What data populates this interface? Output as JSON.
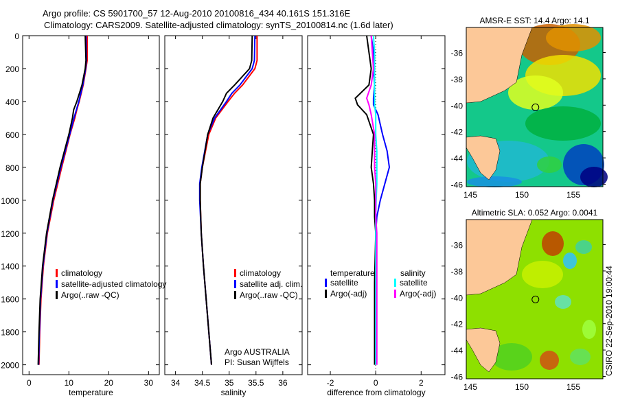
{
  "title_line1": "Argo profile: CS 5901700_57 12-Aug-2010 20100816_434 40.161S 151.316E",
  "title_line2": "Climatology: CARS2009. Satellite-adjusted climatology: synTS_20100814.nc (1.6d later)",
  "colors": {
    "clim": "#ff0000",
    "sat": "#0000ff",
    "argo": "#000000",
    "sal_sat": "#00ffff",
    "sal_argo": "#ff00ff"
  },
  "chart_data": [
    {
      "type": "line",
      "xlabel": "temperature",
      "ylabel": "",
      "xlim": [
        -1.6,
        32.7
      ],
      "ylim": [
        2060,
        0
      ],
      "xticks": [
        0,
        10,
        20,
        30
      ],
      "yticks": [
        0,
        200,
        400,
        600,
        800,
        1000,
        1200,
        1400,
        1600,
        1800,
        2000
      ],
      "depth": [
        0,
        150,
        200,
        300,
        400,
        450,
        500,
        600,
        800,
        1000,
        1200,
        1400,
        1600,
        1800,
        2000
      ],
      "series": [
        {
          "name": "climatology",
          "color": "clim",
          "values": [
            14.6,
            14.6,
            14.3,
            13.6,
            12.6,
            12.0,
            11.5,
            10.3,
            8.2,
            6.2,
            4.6,
            3.6,
            3.0,
            2.7,
            2.5
          ]
        },
        {
          "name": "satellite-adjusted climatology",
          "color": "sat",
          "values": [
            14.3,
            14.4,
            14.2,
            13.5,
            12.5,
            11.9,
            11.3,
            10.2,
            8.0,
            6.0,
            4.5,
            3.5,
            2.9,
            2.6,
            2.4
          ]
        },
        {
          "name": "Argo(..raw -QC)",
          "color": "argo",
          "values": [
            14.1,
            14.3,
            14.1,
            13.3,
            12.0,
            11.2,
            10.9,
            10.0,
            7.8,
            5.9,
            4.4,
            3.4,
            2.8,
            2.5,
            2.3
          ]
        }
      ],
      "legend": [
        "climatology",
        "satellite-adjusted climatology",
        "Argo(..raw -QC)"
      ]
    },
    {
      "type": "line",
      "xlabel": "salinity",
      "ylabel": "",
      "xlim": [
        33.8,
        36.36
      ],
      "ylim": [
        2060,
        0
      ],
      "xticks": [
        34,
        34.5,
        35,
        35.5,
        36
      ],
      "depth": [
        0,
        150,
        200,
        300,
        350,
        400,
        500,
        600,
        800,
        900,
        1000,
        1200,
        1400,
        1600,
        1800,
        2000
      ],
      "series": [
        {
          "name": "climatology",
          "color": "clim",
          "values": [
            35.52,
            35.52,
            35.48,
            35.25,
            35.1,
            34.98,
            34.75,
            34.62,
            34.5,
            34.46,
            34.46,
            34.48,
            34.52,
            34.57,
            34.62,
            34.67
          ]
        },
        {
          "name": "satellite adj. clim.",
          "color": "sat",
          "values": [
            35.48,
            35.47,
            35.43,
            35.2,
            35.05,
            34.95,
            34.73,
            34.6,
            34.49,
            34.45,
            34.45,
            34.48,
            34.52,
            34.57,
            34.62,
            34.67
          ]
        },
        {
          "name": "Argo(..raw -QC)",
          "color": "argo",
          "values": [
            35.43,
            35.42,
            35.38,
            35.1,
            34.95,
            34.88,
            34.7,
            34.6,
            34.5,
            34.46,
            34.46,
            34.48,
            34.52,
            34.57,
            34.62,
            34.67
          ]
        }
      ],
      "legend": [
        "climatology",
        "satellite adj. clim.",
        "Argo(..raw -QC)"
      ],
      "annotation": [
        "Argo AUSTRALIA",
        "PI: Susan Wijffels"
      ]
    },
    {
      "type": "line",
      "xlabel": "difference from climatology",
      "ylabel": "",
      "xlim": [
        -3.0,
        3.05
      ],
      "ylim": [
        2060,
        0
      ],
      "xticks": [
        -2,
        0,
        2
      ],
      "depth": [
        0,
        100,
        200,
        300,
        380,
        420,
        480,
        600,
        700,
        800,
        900,
        1000,
        1100,
        1200,
        1500,
        1800,
        2000
      ],
      "series": [
        {
          "name": "temperature satellite",
          "color": "sat",
          "values": [
            -0.2,
            -0.1,
            -0.1,
            -0.05,
            -0.1,
            -0.1,
            0.1,
            0.3,
            0.5,
            0.6,
            0.4,
            0.2,
            0.05,
            0.0,
            0.0,
            0.0,
            0.0
          ]
        },
        {
          "name": "temperature Argo(-adj)",
          "color": "argo",
          "values": [
            -0.4,
            -0.3,
            -0.2,
            -0.3,
            -0.9,
            -0.8,
            -0.4,
            -0.1,
            -0.15,
            -0.2,
            -0.1,
            -0.05,
            -0.05,
            0.0,
            -0.05,
            -0.05,
            -0.05
          ]
        },
        {
          "name": "salinity satellite",
          "color": "sal_sat",
          "values": [
            -0.1,
            -0.05,
            -0.05,
            -0.05,
            -0.05,
            -0.05,
            0.0,
            0.0,
            0.05,
            0.05,
            0.05,
            0.02,
            0.0,
            0.0,
            0.0,
            0.0,
            0.0
          ]
        },
        {
          "name": "salinity Argo(-adj)",
          "color": "sal_argo",
          "values": [
            -0.2,
            -0.15,
            -0.1,
            -0.2,
            -0.4,
            -0.3,
            -0.2,
            -0.05,
            -0.05,
            -0.05,
            0.0,
            0.0,
            0.0,
            0.05,
            0.05,
            0.05,
            0.05
          ]
        }
      ],
      "legend_left_title": "temperature",
      "legend_right_title": "salinity",
      "legend": [
        "satellite",
        "Argo(-adj)",
        "satellite",
        "Argo(-adj)"
      ]
    }
  ],
  "maps": [
    {
      "title": "AMSR-E SST: 14.4 Argo: 14.1",
      "xticks": [
        "145",
        "150",
        "155"
      ],
      "yticks": [
        "-36",
        "-38",
        "-40",
        "-42",
        "-44",
        "-46"
      ]
    },
    {
      "title": "Altimetric SLA: 0.052 Argo: 0.0041",
      "xticks": [
        "145",
        "150",
        "155"
      ],
      "yticks": [
        "-36",
        "-38",
        "-40",
        "-42",
        "-44",
        "-46"
      ]
    }
  ],
  "credit": "CSIRO 22-Sep-2010 19:00:44"
}
